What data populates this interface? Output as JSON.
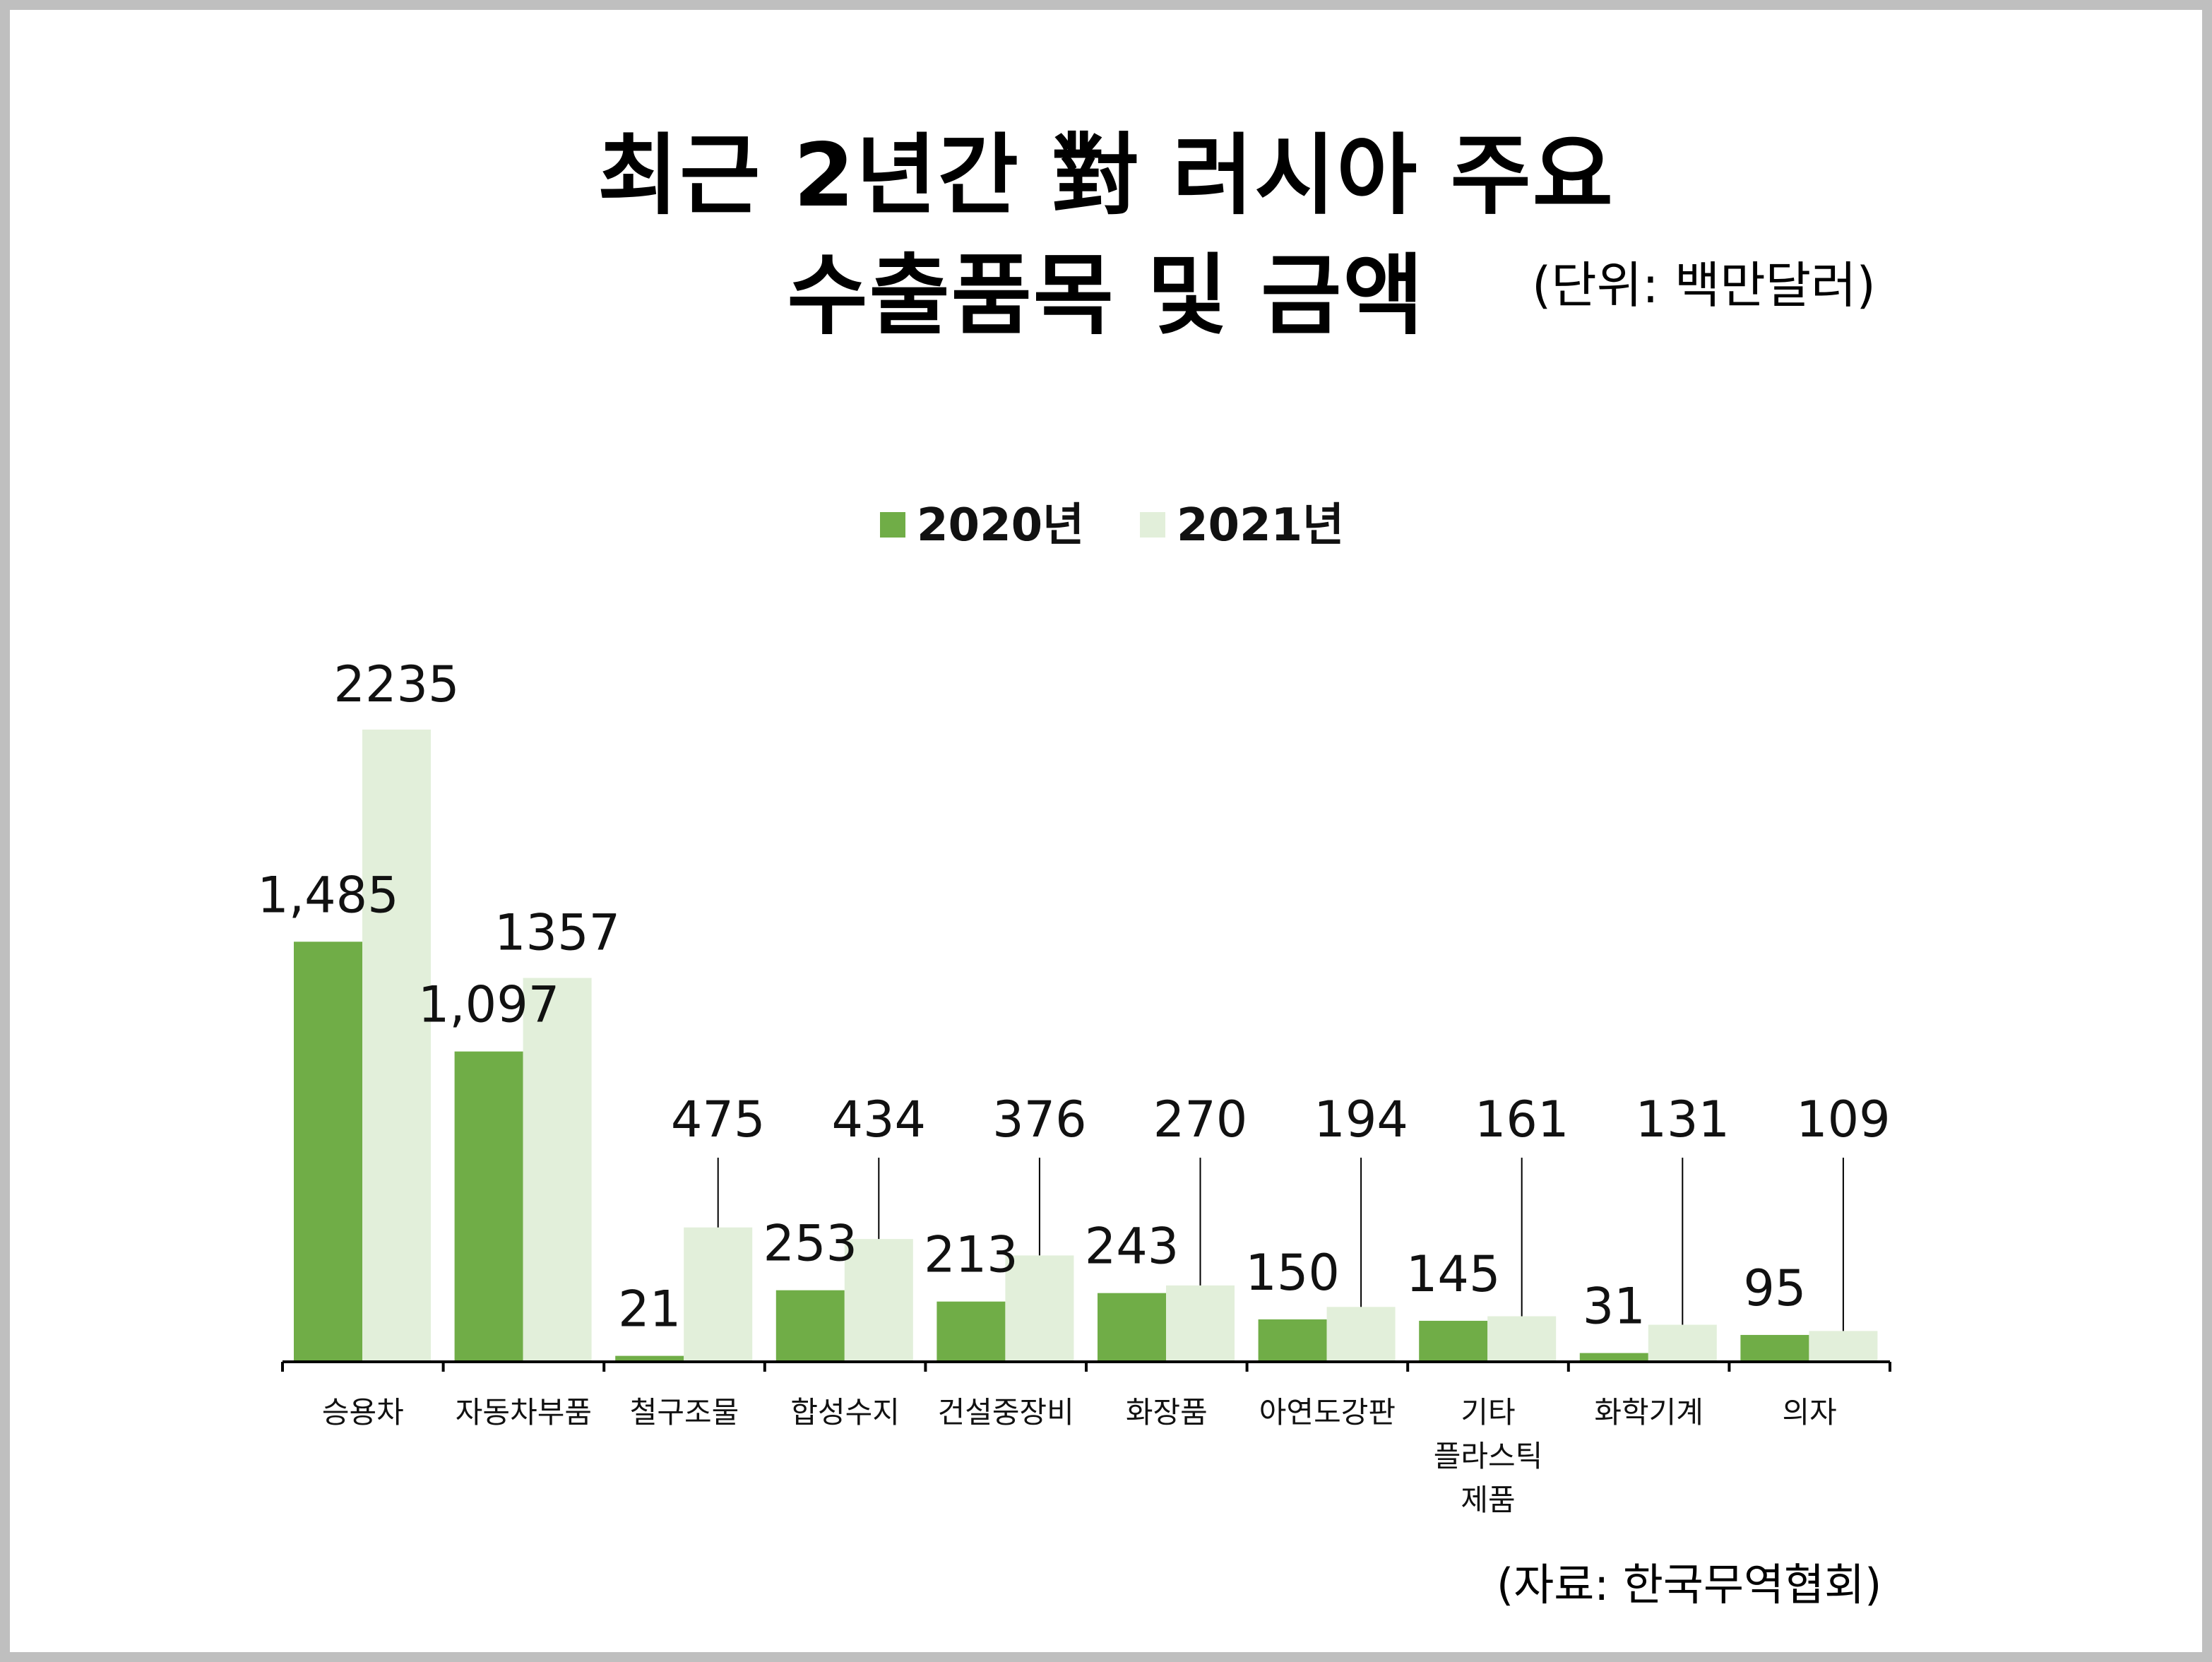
{
  "title_line1": "최근 2년간 對 러시아 주요",
  "title_line2": "수출품목 및 금액",
  "unit_note": "(단위: 백만달러)",
  "source_note": "(자료: 한국무역협회)",
  "colors": {
    "series_2020": "#70ad47",
    "series_2021": "#e2efda",
    "axis": "#000000",
    "frame": "#bfbfbf"
  },
  "chart_data": {
    "type": "bar",
    "categories": [
      [
        "승용차"
      ],
      [
        "자동차부품"
      ],
      [
        "철구조물"
      ],
      [
        "합성수지"
      ],
      [
        "건설중장비"
      ],
      [
        "화장품"
      ],
      [
        "아연도강판"
      ],
      [
        "기타",
        "플라스틱",
        "제품"
      ],
      [
        "화학기계"
      ],
      [
        "의자"
      ]
    ],
    "series": [
      {
        "name": "2020년",
        "values": [
          1485,
          1097,
          21,
          253,
          213,
          243,
          150,
          145,
          31,
          95
        ],
        "labels": [
          "1,485",
          "1,097",
          "21",
          "253",
          "213",
          "243",
          "150",
          "145",
          "31",
          "95"
        ]
      },
      {
        "name": "2021년",
        "values": [
          2235,
          1357,
          475,
          434,
          376,
          270,
          194,
          161,
          131,
          109
        ],
        "labels": [
          "2235",
          "1357",
          "475",
          "434",
          "376",
          "270",
          "194",
          "161",
          "131",
          "109"
        ]
      }
    ],
    "ylim": [
      0,
      2500
    ],
    "legend_position": "top-center",
    "grid": false
  }
}
